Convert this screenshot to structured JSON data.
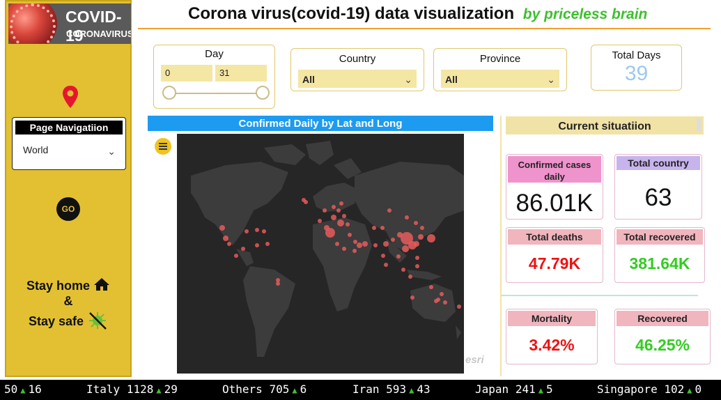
{
  "header": {
    "title": "Corona virus(covid-19) data visualization",
    "subtitle": "by priceless brain"
  },
  "sidebar": {
    "logo_title": "COVID-19",
    "logo_subtitle": "CORONAVIRUS",
    "page_nav_label": "Page Navigatiion",
    "page_nav_value": "World",
    "go_label": "GO",
    "stay_home": "Stay home",
    "ampersand": "&",
    "stay_safe": "Stay safe"
  },
  "filters": {
    "day_label": "Day",
    "day_from": "0",
    "day_to": "31",
    "country_label": "Country",
    "country_value": "All",
    "province_label": "Province",
    "province_value": "All",
    "total_days_label": "Total Days",
    "total_days_value": "39"
  },
  "map": {
    "title": "Confirmed Daily by Lat and Long",
    "attribution": "esri"
  },
  "situation": {
    "title": "Current situatiion",
    "confirmed_label": "Confirmed cases daily",
    "confirmed_value": "86.01K",
    "countries_label": "Total country",
    "countries_value": "63",
    "deaths_label": "Total deaths",
    "deaths_value": "47.79K",
    "recovered_label": "Total recovered",
    "recovered_value": "381.64K",
    "mortality_label": "Mortality",
    "mortality_value": "3.42%",
    "recovered_pct_label": "Recovered",
    "recovered_pct_value": "46.25%"
  },
  "ticker": [
    {
      "name": "",
      "value": "50",
      "delta": "16"
    },
    {
      "name": "Italy",
      "value": "1128",
      "delta": "29"
    },
    {
      "name": "Others",
      "value": "705",
      "delta": "6"
    },
    {
      "name": "Iran",
      "value": "593",
      "delta": "43"
    },
    {
      "name": "Japan",
      "value": "241",
      "delta": "5"
    },
    {
      "name": "Singapore",
      "value": "102",
      "delta": "0"
    }
  ],
  "colors": {
    "sidebar": "#e2c032",
    "accent_blue": "#1d9bf0",
    "deaths_red": "#ee1111",
    "recovered_green": "#33cc22",
    "title_green": "#3fbf2f"
  }
}
